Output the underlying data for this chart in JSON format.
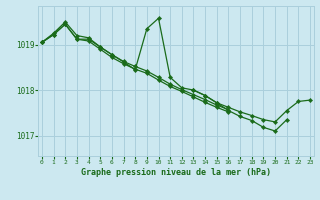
{
  "background_color": "#cce8f0",
  "grid_color": "#aacfdc",
  "line_color": "#1a6b1a",
  "marker_color": "#1a6b1a",
  "title": "Graphe pression niveau de la mer (hPa)",
  "ylim": [
    1016.55,
    1019.85
  ],
  "xlim": [
    -0.3,
    23.3
  ],
  "yticks": [
    1017,
    1018,
    1019
  ],
  "xticks": [
    0,
    1,
    2,
    3,
    4,
    5,
    6,
    7,
    8,
    9,
    10,
    11,
    12,
    13,
    14,
    15,
    16,
    17,
    18,
    19,
    20,
    21,
    22,
    23
  ],
  "series": [
    {
      "x": [
        0,
        1,
        2,
        3,
        4,
        5,
        6,
        7,
        8,
        9,
        10,
        11,
        12,
        13,
        14,
        15,
        16,
        17,
        18,
        19,
        20,
        21
      ],
      "y": [
        1019.05,
        1019.25,
        1019.5,
        1019.2,
        1019.15,
        1018.95,
        1018.78,
        1018.62,
        1018.45,
        1019.35,
        1019.58,
        1018.28,
        1018.05,
        1018.0,
        1017.88,
        1017.72,
        1017.55,
        1017.42,
        1017.33,
        1017.18,
        1017.1,
        1017.35
      ]
    },
    {
      "x": [
        0,
        1,
        2,
        3,
        4,
        5,
        6,
        7,
        8,
        9,
        10,
        11,
        12,
        13,
        14,
        15,
        16
      ],
      "y": [
        1019.05,
        1019.22,
        1019.45,
        1019.12,
        1019.08,
        1018.9,
        1018.72,
        1018.58,
        1018.46,
        1018.37,
        1018.22,
        1018.08,
        1017.97,
        1017.85,
        1017.73,
        1017.62,
        1017.52
      ]
    },
    {
      "x": [
        0,
        1,
        2,
        3,
        4,
        5,
        6,
        7,
        8,
        9,
        10,
        11,
        12,
        13,
        14,
        15,
        16
      ],
      "y": [
        1019.05,
        1019.22,
        1019.45,
        1019.12,
        1019.12,
        1018.95,
        1018.78,
        1018.63,
        1018.52,
        1018.42,
        1018.28,
        1018.13,
        1018.01,
        1017.9,
        1017.79,
        1017.67,
        1017.57
      ]
    },
    {
      "x": [
        13,
        14,
        15,
        16,
        17,
        18,
        19,
        20,
        21,
        22,
        23
      ],
      "y": [
        1018.0,
        1017.88,
        1017.72,
        1017.62,
        1017.52,
        1017.44,
        1017.35,
        1017.3,
        1017.55,
        1017.75,
        1017.78
      ]
    }
  ]
}
